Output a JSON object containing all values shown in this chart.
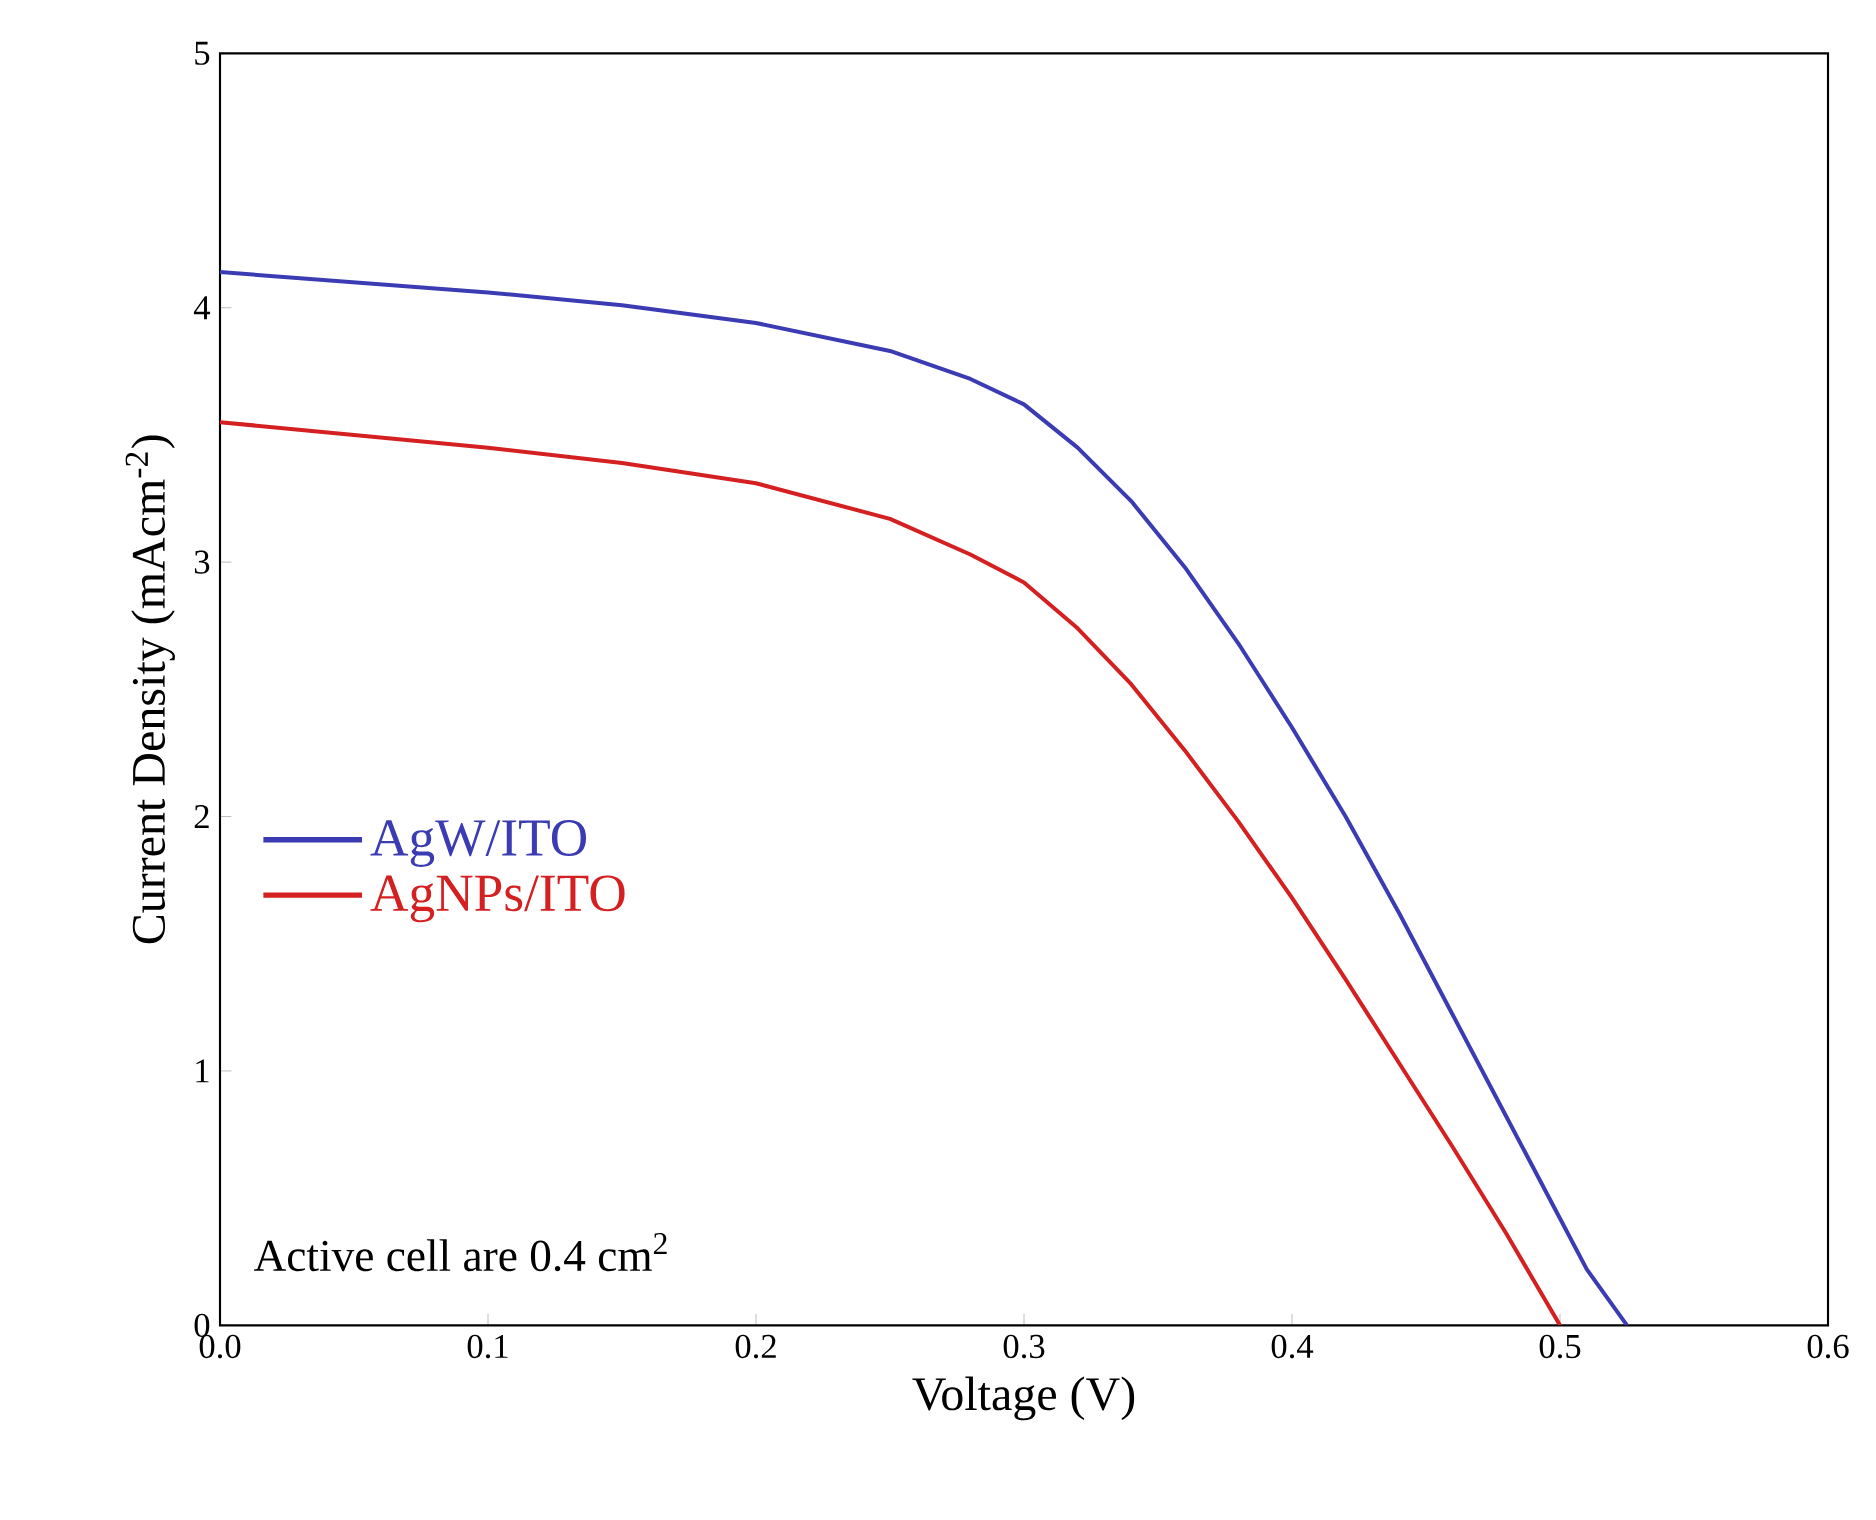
{
  "chart_data": {
    "type": "line",
    "xlabel": "Voltage (V)",
    "ylabel": "Current Density (mAcm$^{-2}$)",
    "annotations": [
      "Active cell are 0.4 cm$^{2}$"
    ],
    "series": [
      {
        "name": "AgW/ITO",
        "color": "#3b3bb3",
        "x": [
          0,
          0.05,
          0.1,
          0.15,
          0.2,
          0.25,
          0.28,
          0.3,
          0.32,
          0.34,
          0.36,
          0.38,
          0.4,
          0.42,
          0.44,
          0.46,
          0.48,
          0.5,
          0.51,
          0.525
        ],
        "values": [
          4.14,
          4.1,
          4.06,
          4.01,
          3.94,
          3.83,
          3.72,
          3.62,
          3.45,
          3.24,
          2.98,
          2.68,
          2.35,
          2.0,
          1.62,
          1.22,
          0.82,
          0.42,
          0.22,
          0
        ]
      },
      {
        "name": "AgNPs/ITO",
        "color": "#d42020",
        "x": [
          0,
          0.05,
          0.1,
          0.15,
          0.2,
          0.25,
          0.28,
          0.3,
          0.32,
          0.34,
          0.36,
          0.38,
          0.4,
          0.42,
          0.44,
          0.46,
          0.48,
          0.5
        ],
        "values": [
          3.55,
          3.5,
          3.45,
          3.39,
          3.31,
          3.17,
          3.03,
          2.92,
          2.74,
          2.52,
          2.26,
          1.98,
          1.68,
          1.36,
          1.03,
          0.7,
          0.36,
          0
        ]
      }
    ],
    "xlim": [
      0,
      0.6
    ],
    "ylim": [
      0,
      5
    ],
    "xticks": [
      {
        "value": 0,
        "label": "0.0"
      },
      {
        "value": 0.1,
        "label": "0.1"
      },
      {
        "value": 0.2,
        "label": "0.2"
      },
      {
        "value": 0.3,
        "label": "0.3"
      },
      {
        "value": 0.4,
        "label": "0.4"
      },
      {
        "value": 0.5,
        "label": "0.5"
      },
      {
        "value": 0.6,
        "label": "0.6"
      }
    ],
    "yticks": [
      0,
      1,
      2,
      3,
      4,
      5
    ],
    "legend": "left",
    "grid": false,
    "marker": "none",
    "line_style": "solid"
  }
}
